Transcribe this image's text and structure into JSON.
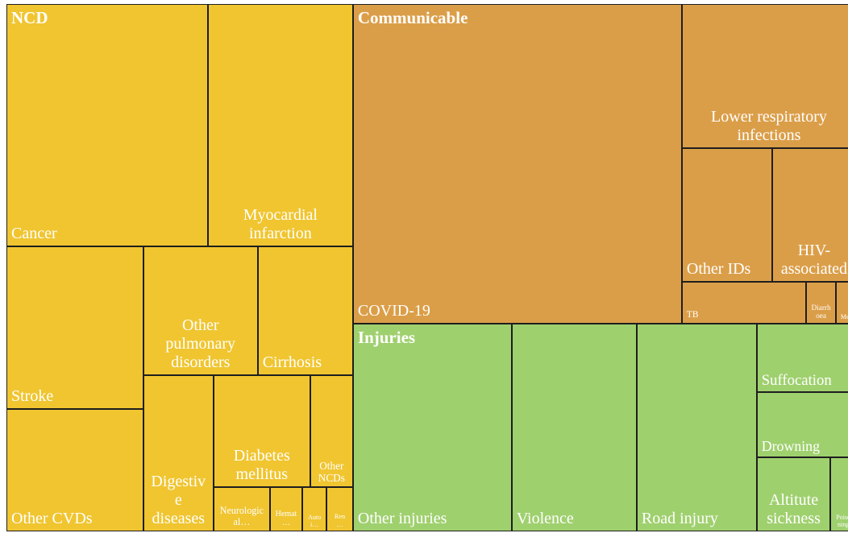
{
  "chart_data": {
    "type": "treemap",
    "groups": [
      {
        "name": "NCD",
        "color": "#f0c530",
        "children": [
          {
            "name": "Cancer",
            "value": 752
          },
          {
            "name": "Myocardial infarction",
            "value": 542
          },
          {
            "name": "Stroke",
            "value": 343
          },
          {
            "name": "Other CVDs",
            "value": 258
          },
          {
            "name": "Other pulmonary disorders",
            "value": 227
          },
          {
            "name": "Cirrhosis",
            "value": 189
          },
          {
            "name": "Digestive diseases",
            "value": 169
          },
          {
            "name": "Diabetes mellitus",
            "value": 167
          },
          {
            "name": "Other NCDs",
            "value": 74
          },
          {
            "name": "Neurological…",
            "value": 38.5
          },
          {
            "name": "Hemat…",
            "value": 22
          },
          {
            "name": "Autoi…",
            "value": 16.5
          },
          {
            "name": "Ren…",
            "value": 18
          }
        ]
      },
      {
        "name": "Communicable",
        "color": "#db9e48",
        "children": [
          {
            "name": "COVID-19",
            "value": 1620
          },
          {
            "name": "Lower respiratory infections",
            "value": 387
          },
          {
            "name": "Other IDs",
            "value": 186
          },
          {
            "name": "HIV-associated",
            "value": 173
          },
          {
            "name": "TB",
            "value": 80
          },
          {
            "name": "Diarrhoea",
            "value": 19
          },
          {
            "name": "Me",
            "value": 13
          }
        ]
      },
      {
        "name": "Injuries",
        "color": "#9fd06e",
        "children": [
          {
            "name": "Other injuries",
            "value": 508
          },
          {
            "name": "Violence",
            "value": 400
          },
          {
            "name": "Road injury",
            "value": 384
          },
          {
            "name": "Suffocation",
            "value": 105
          },
          {
            "name": "Drowning",
            "value": 100
          },
          {
            "name": "Altitute sickness",
            "value": 84
          },
          {
            "name": "Poisoning",
            "value": 29
          }
        ]
      }
    ]
  }
}
